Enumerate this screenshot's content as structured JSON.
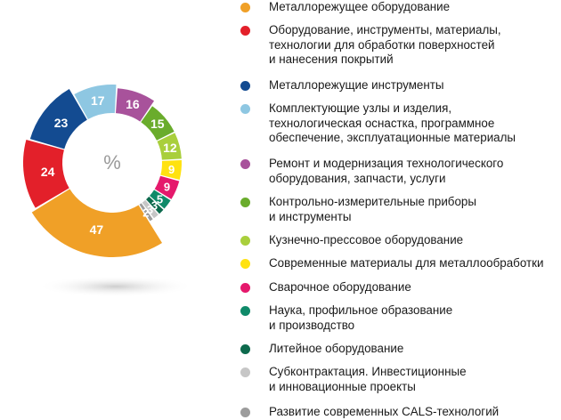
{
  "chart_data": {
    "type": "pie",
    "center_label": "%",
    "slices": [
      {
        "label": "Металлорежущее оборудование",
        "value": 47,
        "color": "#f0a027"
      },
      {
        "label": "Оборудование, инструменты, материалы,\nтехнологии для обработки поверхностей\nи нанесения покрытий",
        "value": 24,
        "color": "#e3202a"
      },
      {
        "label": "Металлорежущие инструменты",
        "value": 23,
        "color": "#134b91"
      },
      {
        "label": "Комплектующие узлы и изделия,\nтехнологическая оснастка, программное\nобеспечение, эксплуатационные материалы",
        "value": 17,
        "color": "#8ec7e2"
      },
      {
        "label": "Ремонт и модернизация технологического\nоборудования, запчасти, услуги",
        "value": 16,
        "color": "#a8529b"
      },
      {
        "label": "Контрольно-измерительные приборы\nи инструменты",
        "value": 15,
        "color": "#6aac2c"
      },
      {
        "label": "Кузнечно-прессовое оборудование",
        "value": 12,
        "color": "#a9cf3c"
      },
      {
        "label": "Современные материалы для металлообработки",
        "value": 9,
        "color": "#ffe210"
      },
      {
        "label": "Сварочное оборудование",
        "value": 9,
        "color": "#e5196c"
      },
      {
        "label": "Наука, профильное образование\nи производство",
        "value": 5,
        "color": "#0f8a69"
      },
      {
        "label": "Литейное оборудование",
        "value": 3,
        "color": "#0d6a4d"
      },
      {
        "label": "Субконтрактация. Инвестиционные\nи инновационные проекты",
        "value": 3,
        "color": "#c6c6c6"
      },
      {
        "label": "Развитие современных CALS-технологий",
        "value": 2,
        "color": "#9c9c9c"
      }
    ]
  }
}
